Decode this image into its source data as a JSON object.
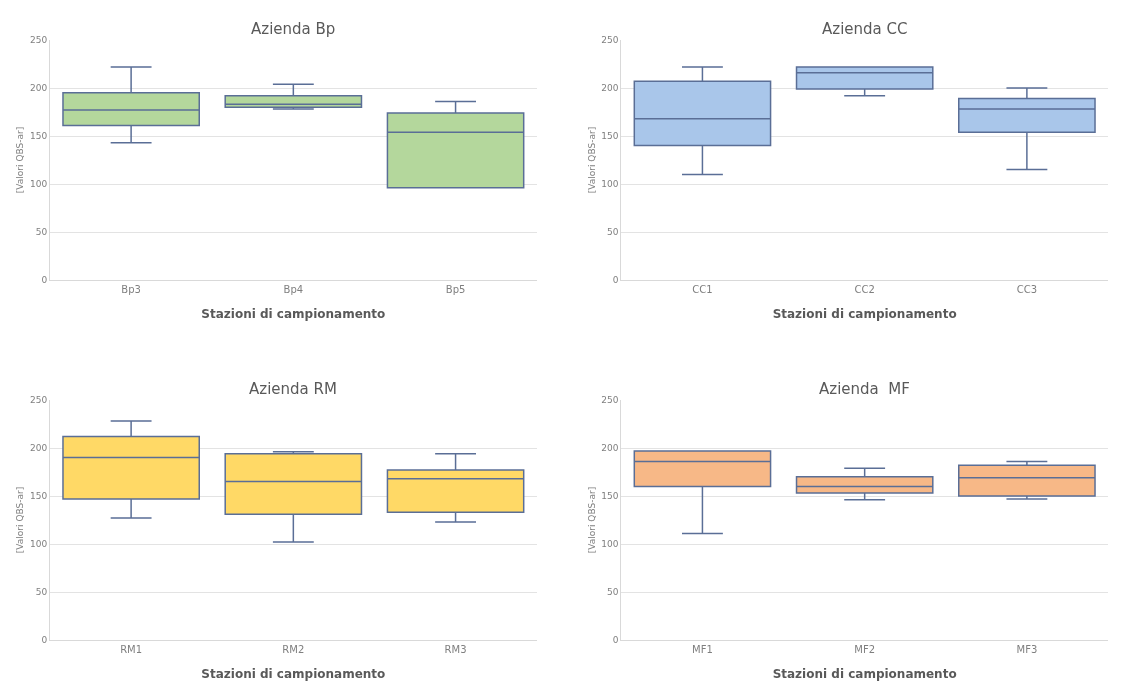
{
  "chart_data": [
    {
      "type": "box",
      "title": "Azienda Bp",
      "xlabel": "Stazioni di campionamento",
      "ylabel": "[Valori QBS-ar]",
      "categories": [
        "Bp3",
        "Bp4",
        "Bp5"
      ],
      "ylim": [
        0,
        250
      ],
      "yticks": [
        0,
        50,
        100,
        150,
        200,
        250
      ],
      "grid": "y",
      "series": [
        {
          "color": "#b4d79c",
          "boxes": [
            {
              "low": 143,
              "q1": 161,
              "median": 177,
              "q3": 195,
              "high": 222
            },
            {
              "low": 178,
              "q1": 180,
              "median": 183,
              "q3": 192,
              "high": 204
            },
            {
              "low": 96,
              "q1": 96,
              "median": 154,
              "q3": 174,
              "high": 186
            }
          ]
        }
      ]
    },
    {
      "type": "box",
      "title": "Azienda CC",
      "xlabel": "Stazioni di campionamento",
      "ylabel": "[Valori QBS-ar]",
      "categories": [
        "CC1",
        "CC2",
        "CC3"
      ],
      "ylim": [
        0,
        250
      ],
      "yticks": [
        0,
        50,
        100,
        150,
        200,
        250
      ],
      "grid": "y",
      "series": [
        {
          "color": "#a9c6ea",
          "boxes": [
            {
              "low": 110,
              "q1": 140,
              "median": 168,
              "q3": 207,
              "high": 222
            },
            {
              "low": 192,
              "q1": 199,
              "median": 216,
              "q3": 222,
              "high": 222
            },
            {
              "low": 115,
              "q1": 154,
              "median": 178,
              "q3": 189,
              "high": 200
            }
          ]
        }
      ]
    },
    {
      "type": "box",
      "title": "Azienda RM",
      "xlabel": "Stazioni di campionamento",
      "ylabel": "[Valori QBS-ar]",
      "categories": [
        "RM1",
        "RM2",
        "RM3"
      ],
      "ylim": [
        0,
        250
      ],
      "yticks": [
        0,
        50,
        100,
        150,
        200,
        250
      ],
      "grid": "y",
      "series": [
        {
          "color": "#ffd966",
          "boxes": [
            {
              "low": 127,
              "q1": 147,
              "median": 190,
              "q3": 212,
              "high": 228
            },
            {
              "low": 102,
              "q1": 131,
              "median": 165,
              "q3": 194,
              "high": 196
            },
            {
              "low": 123,
              "q1": 133,
              "median": 168,
              "q3": 177,
              "high": 194
            }
          ]
        }
      ]
    },
    {
      "type": "box",
      "title": "Azienda  MF",
      "xlabel": "Stazioni di campionamento",
      "ylabel": "[Valori QBS-ar]",
      "categories": [
        "MF1",
        "MF2",
        "MF3"
      ],
      "ylim": [
        0,
        250
      ],
      "yticks": [
        0,
        50,
        100,
        150,
        200,
        250
      ],
      "grid": "y",
      "series": [
        {
          "color": "#f7b887",
          "boxes": [
            {
              "low": 111,
              "q1": 160,
              "median": 186,
              "q3": 197,
              "high": 197
            },
            {
              "low": 146,
              "q1": 153,
              "median": 160,
              "q3": 170,
              "high": 179
            },
            {
              "low": 147,
              "q1": 150,
              "median": 169,
              "q3": 182,
              "high": 186
            }
          ]
        }
      ]
    }
  ]
}
